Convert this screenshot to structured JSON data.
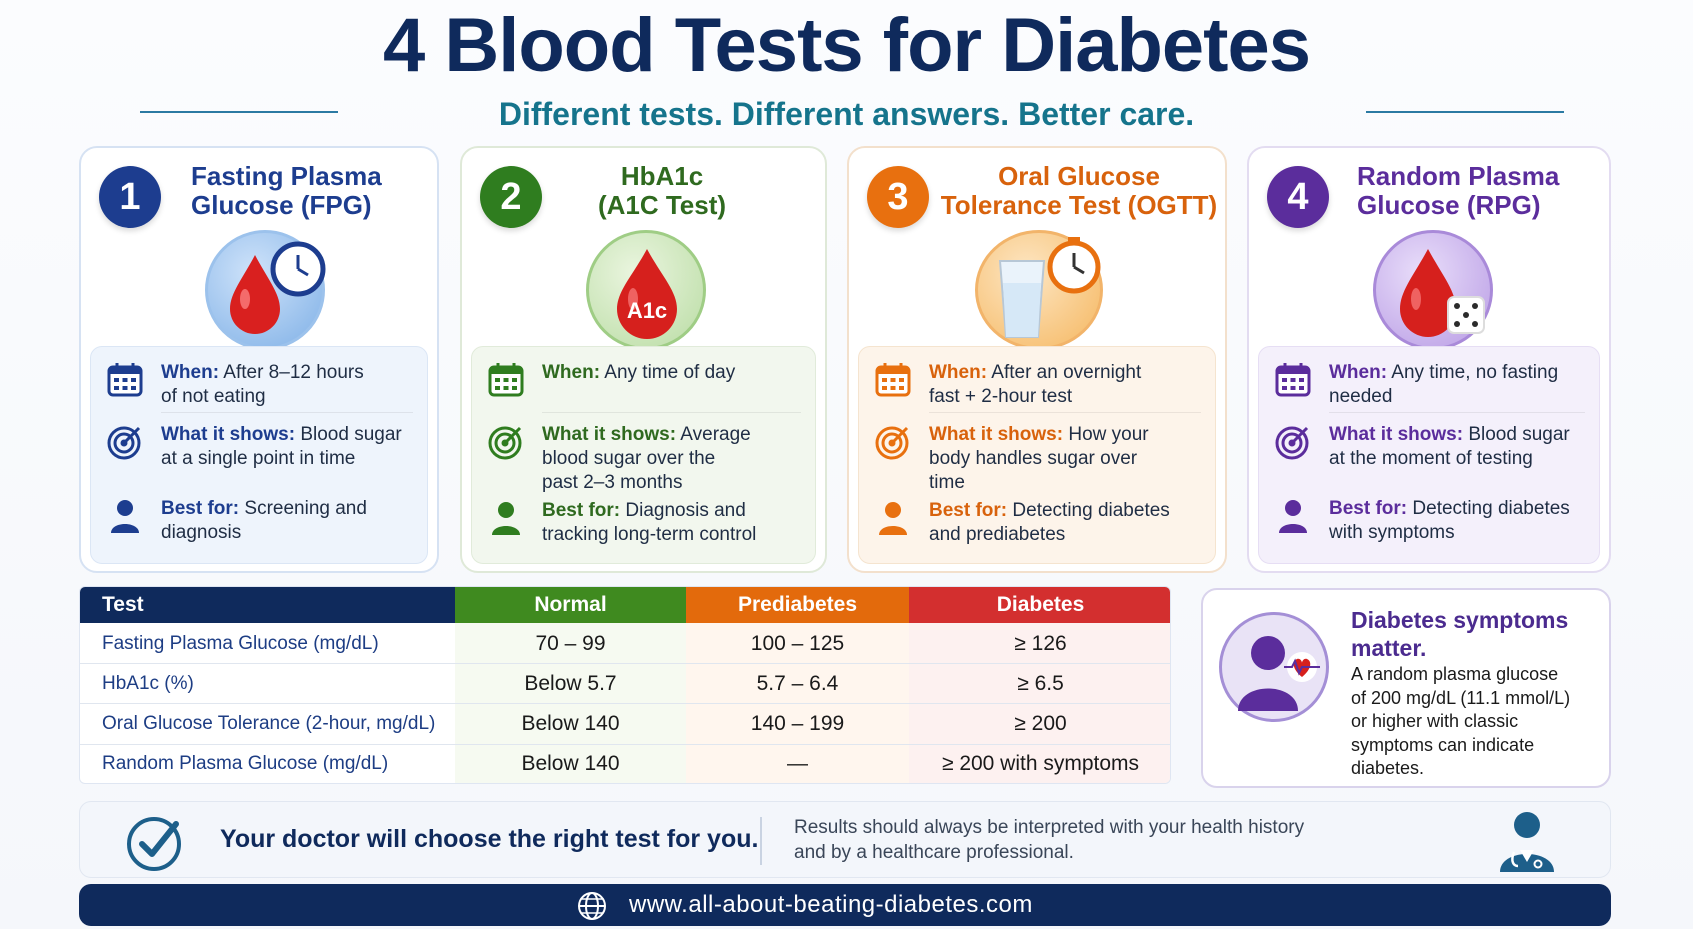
{
  "header": {
    "title": "4 Blood Tests for Diabetes",
    "subtitle": "Different tests. Different answers. Better care."
  },
  "cards": [
    {
      "number": "1",
      "title_line1": "Fasting Plasma",
      "title_line2": "Glucose (FPG)",
      "color": "#1d3d8f",
      "icon": "blood-drop-clock-icon",
      "when_label": "When:",
      "when_line1": "After 8–12 hours",
      "when_line2": "of not eating",
      "shows_label": "What it shows:",
      "shows_line1": "Blood sugar",
      "shows_line2": "at a single point in time",
      "shows_line3": "",
      "best_label": "Best for:",
      "best_line1": "Screening and",
      "best_line2": "diagnosis"
    },
    {
      "number": "2",
      "title_line1": "HbA1c",
      "title_line2": "(A1C Test)",
      "color": "#2f7d1f",
      "icon": "blood-drop-a1c-icon",
      "drop_text": "A1c",
      "when_label": "When:",
      "when_line1": "Any time of day",
      "when_line2": "",
      "shows_label": "What it shows:",
      "shows_line1": "Average",
      "shows_line2": "blood sugar over the",
      "shows_line3": "past 2–3 months",
      "best_label": "Best for:",
      "best_line1": "Diagnosis and",
      "best_line2": "tracking long-term control"
    },
    {
      "number": "3",
      "title_line1": "Oral Glucose",
      "title_line2": "Tolerance Test (OGTT)",
      "color": "#e8700f",
      "icon": "glass-timer-icon",
      "when_label": "When:",
      "when_line1": "After an overnight",
      "when_line2": "fast + 2-hour test",
      "shows_label": "What it shows:",
      "shows_line1": "How your",
      "shows_line2": "body handles sugar over",
      "shows_line3": "time",
      "best_label": "Best for:",
      "best_line1": "Detecting diabetes",
      "best_line2": "and prediabetes"
    },
    {
      "number": "4",
      "title_line1": "Random Plasma",
      "title_line2": "Glucose (RPG)",
      "color": "#5b2d9c",
      "icon": "blood-drop-dice-icon",
      "when_label": "When:",
      "when_line1": "Any time, no fasting",
      "when_line2": "needed",
      "shows_label": "What it shows:",
      "shows_line1": "Blood sugar",
      "shows_line2": "at the moment of testing",
      "shows_line3": "",
      "best_label": "Best for:",
      "best_line1": "Detecting diabetes",
      "best_line2": "with symptoms"
    }
  ],
  "table": {
    "headers": [
      "Test",
      "Normal",
      "Prediabetes",
      "Diabetes"
    ],
    "header_colors": [
      "#0f2a5c",
      "#3f8a1f",
      "#e36a0c",
      "#d32f2f"
    ],
    "rows": [
      [
        "Fasting Plasma Glucose (mg/dL)",
        "70 – 99",
        "100 – 125",
        "≥ 126"
      ],
      [
        "HbA1c (%)",
        "Below 5.7",
        "5.7 – 6.4",
        "≥ 6.5"
      ],
      [
        "Oral Glucose Tolerance (2-hour, mg/dL)",
        "Below 140",
        "140 – 199",
        "≥ 200"
      ],
      [
        "Random Plasma Glucose (mg/dL)",
        "Below 140",
        "—",
        "≥ 200 with symptoms"
      ]
    ]
  },
  "symptoms": {
    "heading_line1": "Diabetes symptoms",
    "heading_line2": "matter.",
    "body_lines": [
      "A random plasma glucose",
      "of 200 mg/dL (11.1 mmol/L)",
      "or higher with classic",
      "symptoms can indicate",
      "diabetes."
    ]
  },
  "banner": {
    "headline": "Your doctor will choose the right test for you.",
    "note_line1": "Results should always be interpreted with your health history",
    "note_line2": "and by a healthcare professional."
  },
  "footer": {
    "url": "www.all-about-beating-diabetes.com"
  }
}
